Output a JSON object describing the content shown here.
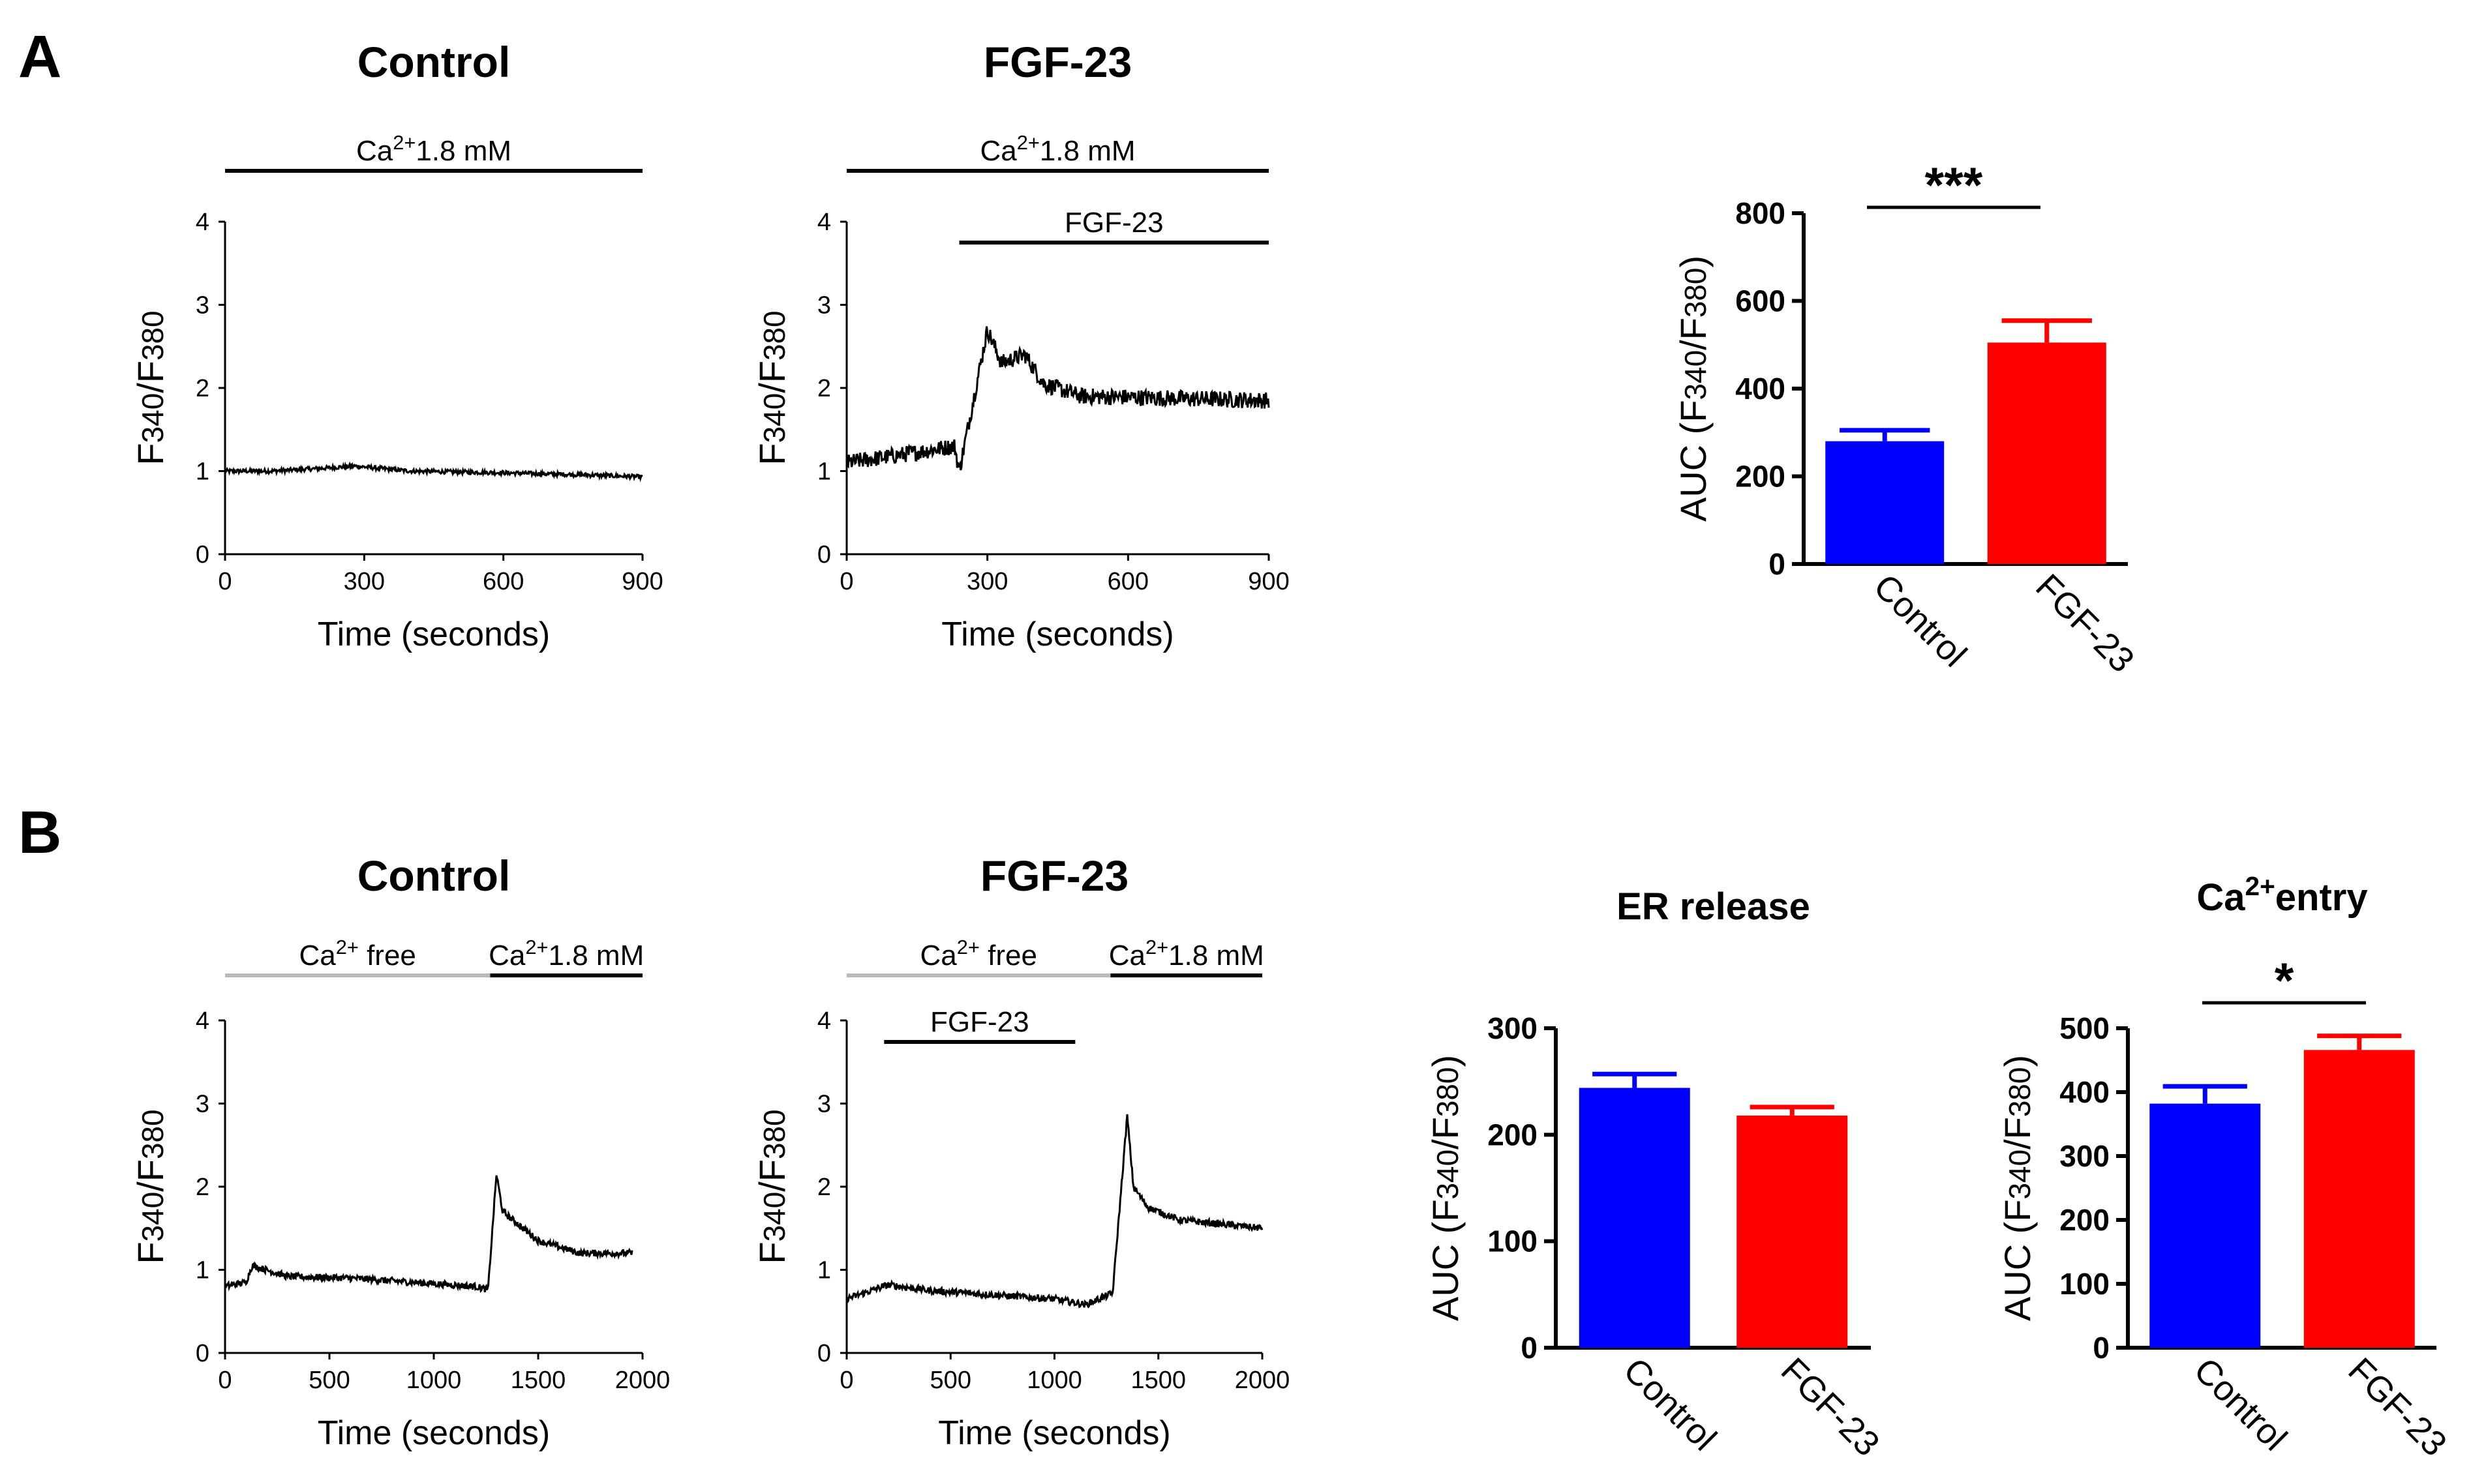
{
  "panels": {
    "A": "A",
    "B": "B"
  },
  "chart_data": [
    {
      "id": "A-control",
      "type": "line",
      "title": "Control",
      "xlabel": "Time (seconds)",
      "ylabel": "F340/F380",
      "xlim": [
        0,
        900
      ],
      "ylim": [
        0,
        4
      ],
      "xticks": [
        0,
        300,
        600,
        900
      ],
      "yticks": [
        0,
        1,
        2,
        3,
        4
      ],
      "annotations": [
        {
          "text": "Ca²⁺1.8 mM",
          "x_range": [
            0,
            900
          ],
          "color": "#000000"
        }
      ],
      "trace": {
        "x": [
          0,
          100,
          200,
          280,
          400,
          600,
          800,
          900
        ],
        "y": [
          1.0,
          1.0,
          1.03,
          1.06,
          1.0,
          0.98,
          0.95,
          0.93
        ],
        "noise": 0.025
      }
    },
    {
      "id": "A-fgf23",
      "type": "line",
      "title": "FGF-23",
      "xlabel": "Time (seconds)",
      "ylabel": "F340/F380",
      "xlim": [
        0,
        900
      ],
      "ylim": [
        0,
        4
      ],
      "xticks": [
        0,
        300,
        600,
        900
      ],
      "yticks": [
        0,
        1,
        2,
        3,
        4
      ],
      "annotations": [
        {
          "text": "Ca²⁺1.8 mM",
          "x_range": [
            0,
            900
          ],
          "color": "#000000"
        },
        {
          "text": "FGF-23",
          "x_range": [
            240,
            900
          ],
          "color": "#000000"
        }
      ],
      "trace": {
        "x": [
          0,
          120,
          230,
          240,
          300,
          330,
          380,
          420,
          500,
          900
        ],
        "y": [
          1.1,
          1.2,
          1.3,
          1.0,
          2.7,
          2.3,
          2.4,
          2.05,
          1.9,
          1.85
        ],
        "noise": 0.1
      }
    },
    {
      "id": "A-auc",
      "type": "bar",
      "ylabel": "AUC (F340/F380)",
      "categories": [
        "Control",
        "FGF-23"
      ],
      "values": [
        280,
        505
      ],
      "errors": [
        25,
        50
      ],
      "colors": [
        "#0000ff",
        "#ff0000"
      ],
      "ylim": [
        0,
        800
      ],
      "yticks": [
        0,
        200,
        400,
        600,
        800
      ],
      "significance": "***"
    },
    {
      "id": "B-control",
      "type": "line",
      "title": "Control",
      "xlabel": "Time (seconds)",
      "ylabel": "F340/F380",
      "xlim": [
        0,
        2000
      ],
      "ylim": [
        0,
        4
      ],
      "xticks": [
        0,
        500,
        1000,
        1500,
        2000
      ],
      "yticks": [
        0,
        1,
        2,
        3,
        4
      ],
      "annotations": [
        {
          "text": "Ca²⁺ free",
          "x_range": [
            0,
            1270
          ],
          "color": "#bbbbbb"
        },
        {
          "text": "Ca²⁺1.8 mM",
          "x_range": [
            1270,
            2000
          ],
          "color": "#000000"
        }
      ],
      "trace": {
        "x": [
          0,
          100,
          130,
          300,
          600,
          900,
          1200,
          1260,
          1300,
          1330,
          1500,
          1700,
          1950
        ],
        "y": [
          0.8,
          0.85,
          1.05,
          0.92,
          0.9,
          0.85,
          0.8,
          0.76,
          2.15,
          1.7,
          1.35,
          1.2,
          1.2
        ],
        "noise": 0.04
      }
    },
    {
      "id": "B-fgf23",
      "type": "line",
      "title": "FGF-23",
      "xlabel": "Time (seconds)",
      "ylabel": "F340/F380",
      "xlim": [
        0,
        2000
      ],
      "ylim": [
        0,
        4
      ],
      "xticks": [
        0,
        500,
        1000,
        1500,
        2000
      ],
      "yticks": [
        0,
        1,
        2,
        3,
        4
      ],
      "annotations": [
        {
          "text": "Ca²⁺ free",
          "x_range": [
            0,
            1270
          ],
          "color": "#bbbbbb"
        },
        {
          "text": "Ca²⁺1.8 mM",
          "x_range": [
            1270,
            2000
          ],
          "color": "#000000"
        },
        {
          "text": "FGF-23",
          "x_range": [
            180,
            1100
          ],
          "color": "#000000"
        }
      ],
      "trace": {
        "x": [
          0,
          200,
          400,
          700,
          1000,
          1150,
          1280,
          1350,
          1380,
          1450,
          1600,
          2000
        ],
        "y": [
          0.65,
          0.82,
          0.75,
          0.7,
          0.65,
          0.58,
          0.72,
          2.85,
          2.0,
          1.75,
          1.6,
          1.5
        ],
        "noise": 0.04
      }
    },
    {
      "id": "B-er",
      "type": "bar",
      "title": "ER release",
      "ylabel": "AUC (F340/F380)",
      "categories": [
        "Control",
        "FGF-23"
      ],
      "values": [
        244,
        218
      ],
      "errors": [
        13,
        8
      ],
      "colors": [
        "#0000ff",
        "#ff0000"
      ],
      "ylim": [
        0,
        300
      ],
      "yticks": [
        0,
        100,
        200,
        300
      ]
    },
    {
      "id": "B-entry",
      "type": "bar",
      "title": "Ca²⁺entry",
      "ylabel": "AUC (F340/F380)",
      "categories": [
        "Control",
        "FGF-23"
      ],
      "values": [
        382,
        466
      ],
      "errors": [
        27,
        22
      ],
      "colors": [
        "#0000ff",
        "#ff0000"
      ],
      "ylim": [
        0,
        500
      ],
      "yticks": [
        0,
        100,
        200,
        300,
        400,
        500
      ],
      "significance": "*"
    }
  ]
}
